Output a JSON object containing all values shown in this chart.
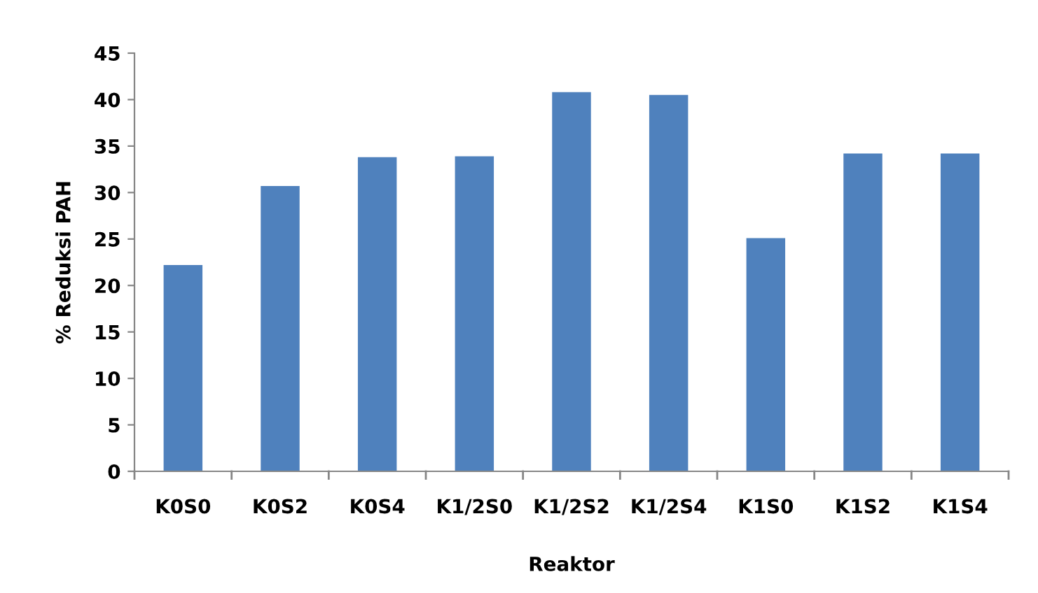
{
  "chart_data": {
    "type": "bar",
    "xlabel": "Reaktor",
    "ylabel": "% Reduksi PAH",
    "categories": [
      "K0S0",
      "K0S2",
      "K0S4",
      "K1/2S0",
      "K1/2S2",
      "K1/2S4",
      "K1S0",
      "K1S2",
      "K1S4"
    ],
    "values": [
      22.2,
      30.7,
      33.8,
      33.9,
      40.8,
      40.5,
      25.1,
      34.2,
      34.2
    ],
    "color": "#4f81bd",
    "ylim": [
      0,
      45
    ],
    "yticks": [
      0,
      5,
      10,
      15,
      20,
      25,
      30,
      35,
      40,
      45
    ],
    "grid": false,
    "legend": false
  }
}
